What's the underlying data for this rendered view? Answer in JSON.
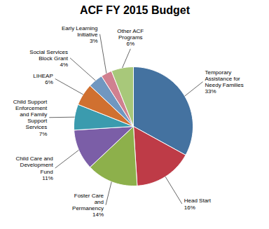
{
  "chart_data": {
    "type": "pie",
    "title": "ACF FY 2015 Budget",
    "categories": [
      "Temporary\nAssistance for\nNeedy Families",
      "Head Start",
      "Foster Care\nand\nPermanency",
      "Child Care and\nDevelopment\nFund",
      "Child Support\nEnforcement\nand Family\nSupport\nServices",
      "LIHEAP",
      "Social Services\nBlock Grant",
      "Early Learning\nInitiative",
      "Other ACF\nPrograms"
    ],
    "values": [
      33,
      16,
      14,
      11,
      7,
      6,
      4,
      3,
      6
    ],
    "value_labels": [
      "33%",
      "16%",
      "14%",
      "11%",
      "7%",
      "6%",
      "4%",
      "3%",
      "6%"
    ],
    "colors": [
      "#4472A0",
      "#BE3B47",
      "#8DB04B",
      "#7B5EA7",
      "#3B9BAE",
      "#D07030",
      "#7097C0",
      "#D08090",
      "#A8C87A"
    ],
    "data_labels": true
  }
}
